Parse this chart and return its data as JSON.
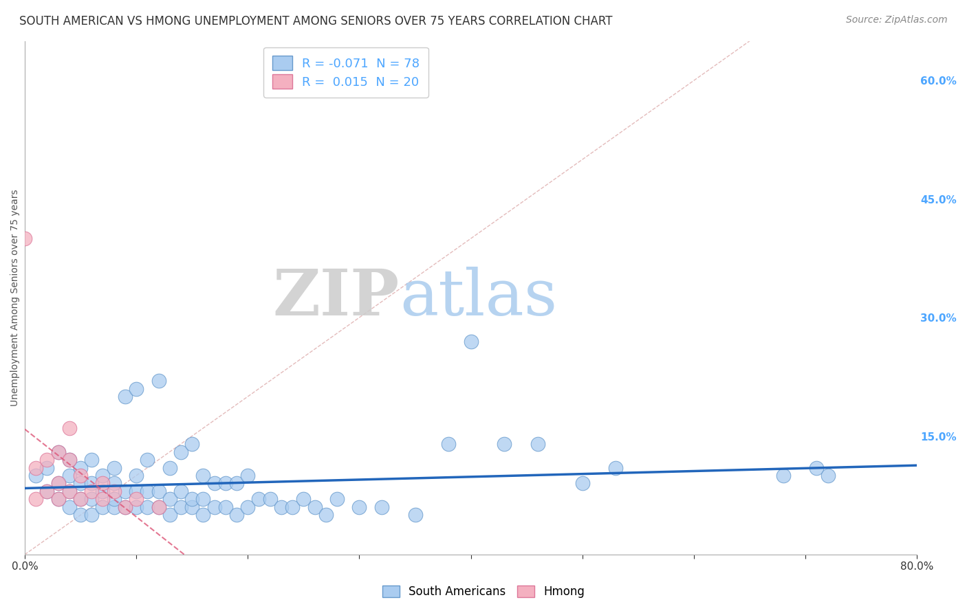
{
  "title": "SOUTH AMERICAN VS HMONG UNEMPLOYMENT AMONG SENIORS OVER 75 YEARS CORRELATION CHART",
  "source": "Source: ZipAtlas.com",
  "xlabel": "",
  "ylabel": "Unemployment Among Seniors over 75 years",
  "xlim": [
    0.0,
    0.8
  ],
  "ylim": [
    0.0,
    0.65
  ],
  "xtick_labels": [
    "0.0%",
    "",
    "",
    "",
    "",
    "",
    "",
    "",
    "80.0%"
  ],
  "xtick_vals": [
    0.0,
    0.1,
    0.2,
    0.3,
    0.4,
    0.5,
    0.6,
    0.7,
    0.8
  ],
  "ytick_labels": [
    "15.0%",
    "30.0%",
    "45.0%",
    "60.0%"
  ],
  "ytick_vals": [
    0.15,
    0.3,
    0.45,
    0.6
  ],
  "right_ytick_color": "#4da6ff",
  "grid_color": "#cccccc",
  "background_color": "#ffffff",
  "watermark_zip": "ZIP",
  "watermark_atlas": "atlas",
  "south_american_color": "#aaccf0",
  "hmong_color": "#f4b0c0",
  "south_american_edge": "#6699cc",
  "hmong_edge": "#dd7799",
  "legend_R_sa": "-0.071",
  "legend_N_sa": "78",
  "legend_R_hmong": "0.015",
  "legend_N_hmong": "20",
  "trend_sa_color": "#2266bb",
  "trend_hmong_color": "#dd5577",
  "ref_line_color": "#ddaaaa",
  "south_american_x": [
    0.01,
    0.02,
    0.02,
    0.03,
    0.03,
    0.03,
    0.04,
    0.04,
    0.04,
    0.04,
    0.05,
    0.05,
    0.05,
    0.05,
    0.06,
    0.06,
    0.06,
    0.06,
    0.07,
    0.07,
    0.07,
    0.08,
    0.08,
    0.08,
    0.08,
    0.09,
    0.09,
    0.09,
    0.1,
    0.1,
    0.1,
    0.1,
    0.11,
    0.11,
    0.11,
    0.12,
    0.12,
    0.12,
    0.13,
    0.13,
    0.13,
    0.14,
    0.14,
    0.14,
    0.15,
    0.15,
    0.15,
    0.16,
    0.16,
    0.16,
    0.17,
    0.17,
    0.18,
    0.18,
    0.19,
    0.19,
    0.2,
    0.2,
    0.21,
    0.22,
    0.23,
    0.24,
    0.25,
    0.26,
    0.27,
    0.28,
    0.3,
    0.32,
    0.35,
    0.38,
    0.4,
    0.43,
    0.46,
    0.5,
    0.53,
    0.68,
    0.71,
    0.72
  ],
  "south_american_y": [
    0.1,
    0.08,
    0.11,
    0.07,
    0.09,
    0.13,
    0.06,
    0.08,
    0.1,
    0.12,
    0.05,
    0.07,
    0.09,
    0.11,
    0.05,
    0.07,
    0.09,
    0.12,
    0.06,
    0.08,
    0.1,
    0.06,
    0.07,
    0.09,
    0.11,
    0.06,
    0.08,
    0.2,
    0.06,
    0.08,
    0.1,
    0.21,
    0.06,
    0.08,
    0.12,
    0.06,
    0.08,
    0.22,
    0.05,
    0.07,
    0.11,
    0.06,
    0.08,
    0.13,
    0.06,
    0.07,
    0.14,
    0.05,
    0.07,
    0.1,
    0.06,
    0.09,
    0.06,
    0.09,
    0.05,
    0.09,
    0.06,
    0.1,
    0.07,
    0.07,
    0.06,
    0.06,
    0.07,
    0.06,
    0.05,
    0.07,
    0.06,
    0.06,
    0.05,
    0.14,
    0.27,
    0.14,
    0.14,
    0.09,
    0.11,
    0.1,
    0.11,
    0.1
  ],
  "hmong_x": [
    0.0,
    0.01,
    0.01,
    0.02,
    0.02,
    0.03,
    0.03,
    0.03,
    0.04,
    0.04,
    0.04,
    0.05,
    0.05,
    0.06,
    0.07,
    0.07,
    0.08,
    0.09,
    0.1,
    0.12
  ],
  "hmong_y": [
    0.4,
    0.07,
    0.11,
    0.08,
    0.12,
    0.07,
    0.09,
    0.13,
    0.08,
    0.12,
    0.16,
    0.07,
    0.1,
    0.08,
    0.07,
    0.09,
    0.08,
    0.06,
    0.07,
    0.06
  ]
}
